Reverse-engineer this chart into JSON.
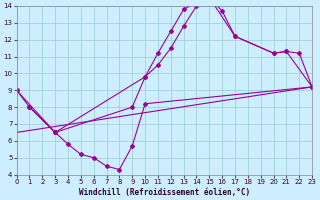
{
  "xlabel": "Windchill (Refroidissement éolien,°C)",
  "bg_color": "#cceeff",
  "line_color": "#990099",
  "grid_color": "#99cccc",
  "xlim": [
    0,
    23
  ],
  "ylim": [
    4,
    14
  ],
  "xticks": [
    0,
    1,
    2,
    3,
    4,
    5,
    6,
    7,
    8,
    9,
    10,
    11,
    12,
    13,
    14,
    15,
    16,
    17,
    18,
    19,
    20,
    21,
    22,
    23
  ],
  "yticks": [
    4,
    5,
    6,
    7,
    8,
    9,
    10,
    11,
    12,
    13,
    14
  ],
  "line1_x": [
    0,
    1,
    3,
    10,
    11,
    12,
    13,
    14,
    15,
    16,
    17,
    20,
    21,
    22,
    23
  ],
  "line1_y": [
    9,
    8,
    6.5,
    9.8,
    11.2,
    12.5,
    13.8,
    14.2,
    14.5,
    13.7,
    12.2,
    11.2,
    11.3,
    11.2,
    9.2
  ],
  "line2_x": [
    0,
    3,
    9,
    10,
    11,
    12,
    13,
    14,
    15,
    17,
    20,
    21,
    23
  ],
  "line2_y": [
    9.0,
    6.5,
    8.0,
    9.8,
    10.5,
    11.5,
    12.8,
    14.0,
    14.5,
    12.2,
    11.2,
    11.3,
    9.2
  ],
  "line3_x": [
    1,
    3,
    4,
    5,
    6,
    7,
    8,
    9,
    10,
    23
  ],
  "line3_y": [
    8.0,
    6.5,
    5.8,
    5.2,
    5.0,
    4.5,
    4.3,
    5.7,
    8.2,
    9.2
  ],
  "line4_x": [
    0,
    23
  ],
  "line4_y": [
    6.5,
    9.2
  ]
}
